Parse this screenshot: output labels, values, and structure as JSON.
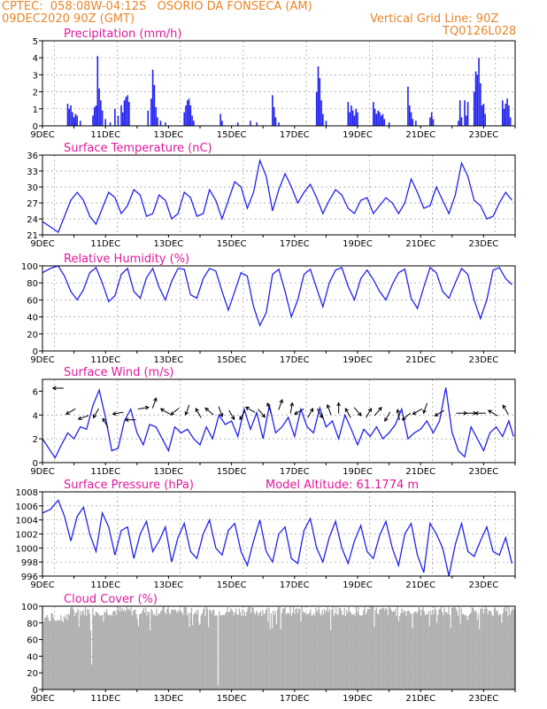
{
  "header": {
    "line1_left": "CPTEC:  058:08W-04:12S   OSORIO DA FONSECA (AM)",
    "line2_left": "09DEC2020 90Z (GMT)",
    "line2_right": "Vertical Grid Line: 90Z",
    "line3_right": "TQ0126L028"
  },
  "colors": {
    "header": "#e8862a",
    "title": "#e0189a",
    "series": "#2222ee",
    "cloud": "#b0b0b0",
    "arrow": "#000000"
  },
  "date_labels": [
    "9DEC",
    "11DEC",
    "13DEC",
    "15DEC",
    "17DEC",
    "19DEC",
    "21DEC",
    "23DEC"
  ],
  "chart_data": [
    {
      "type": "bar",
      "title": "Precipitation (mm/h)",
      "ylim": [
        0,
        5
      ],
      "yticks": [
        "0",
        "1",
        "2",
        "3",
        "4",
        "5"
      ],
      "x_range_days": [
        9,
        24
      ],
      "values": [
        [
          9.8,
          1.3
        ],
        [
          9.85,
          1.0
        ],
        [
          9.9,
          1.2
        ],
        [
          9.95,
          0.8
        ],
        [
          10.0,
          0.5
        ],
        [
          10.05,
          0.7
        ],
        [
          10.1,
          0.6
        ],
        [
          10.2,
          0.3
        ],
        [
          10.6,
          0.6
        ],
        [
          10.65,
          1.1
        ],
        [
          10.7,
          1.2
        ],
        [
          10.75,
          4.1
        ],
        [
          10.8,
          2.2
        ],
        [
          10.85,
          1.5
        ],
        [
          10.9,
          0.9
        ],
        [
          11.0,
          0.4
        ],
        [
          11.15,
          0.2
        ],
        [
          11.3,
          1.0
        ],
        [
          11.4,
          0.6
        ],
        [
          11.5,
          1.2
        ],
        [
          11.55,
          0.8
        ],
        [
          11.6,
          1.5
        ],
        [
          11.65,
          1.7
        ],
        [
          11.7,
          1.8
        ],
        [
          11.75,
          1.4
        ],
        [
          12.35,
          0.9
        ],
        [
          12.45,
          1.6
        ],
        [
          12.5,
          3.3
        ],
        [
          12.55,
          2.4
        ],
        [
          12.6,
          1.1
        ],
        [
          12.65,
          0.5
        ],
        [
          12.75,
          0.3
        ],
        [
          12.9,
          0.2
        ],
        [
          13.5,
          0.8
        ],
        [
          13.55,
          1.2
        ],
        [
          13.6,
          1.5
        ],
        [
          13.65,
          1.6
        ],
        [
          13.7,
          1.2
        ],
        [
          13.75,
          0.6
        ],
        [
          13.8,
          0.3
        ],
        [
          14.65,
          0.7
        ],
        [
          14.7,
          0.3
        ],
        [
          15.2,
          0.2
        ],
        [
          15.6,
          0.3
        ],
        [
          15.8,
          0.2
        ],
        [
          16.3,
          1.8
        ],
        [
          16.35,
          1.1
        ],
        [
          16.4,
          0.5
        ],
        [
          16.5,
          0.2
        ],
        [
          17.7,
          2.0
        ],
        [
          17.75,
          3.5
        ],
        [
          17.8,
          2.8
        ],
        [
          17.85,
          1.5
        ],
        [
          17.9,
          0.7
        ],
        [
          18.0,
          0.3
        ],
        [
          18.7,
          1.4
        ],
        [
          18.75,
          0.8
        ],
        [
          18.8,
          1.2
        ],
        [
          18.85,
          0.9
        ],
        [
          18.9,
          0.6
        ],
        [
          18.95,
          1.0
        ],
        [
          19.0,
          0.8
        ],
        [
          19.5,
          1.4
        ],
        [
          19.55,
          1.0
        ],
        [
          19.6,
          0.7
        ],
        [
          19.65,
          0.9
        ],
        [
          19.7,
          0.8
        ],
        [
          19.75,
          0.6
        ],
        [
          19.8,
          0.7
        ],
        [
          19.85,
          0.4
        ],
        [
          20.0,
          0.2
        ],
        [
          20.6,
          2.3
        ],
        [
          20.65,
          1.2
        ],
        [
          20.7,
          0.8
        ],
        [
          20.75,
          0.4
        ],
        [
          20.85,
          0.3
        ],
        [
          21.3,
          0.5
        ],
        [
          21.35,
          0.8
        ],
        [
          21.4,
          0.4
        ],
        [
          22.2,
          0.3
        ],
        [
          22.25,
          1.5
        ],
        [
          22.3,
          0.5
        ],
        [
          22.4,
          1.5
        ],
        [
          22.45,
          0.6
        ],
        [
          22.5,
          1.4
        ],
        [
          22.7,
          2.0
        ],
        [
          22.75,
          3.2
        ],
        [
          22.8,
          3.0
        ],
        [
          22.85,
          4.0
        ],
        [
          22.9,
          2.5
        ],
        [
          22.95,
          1.2
        ],
        [
          23.0,
          1.3
        ],
        [
          23.05,
          0.7
        ],
        [
          23.6,
          1.5
        ],
        [
          23.65,
          1.0
        ],
        [
          23.7,
          1.3
        ],
        [
          23.75,
          1.6
        ],
        [
          23.8,
          1.2
        ],
        [
          23.85,
          0.5
        ]
      ]
    },
    {
      "type": "line",
      "title": "Surface Temperature (nC)",
      "ylim": [
        21,
        36
      ],
      "yticks": [
        "21",
        "24",
        "27",
        "30",
        "33",
        "36"
      ],
      "x": [
        9.0,
        9.25,
        9.5,
        9.7,
        9.9,
        10.1,
        10.3,
        10.5,
        10.7,
        10.9,
        11.1,
        11.3,
        11.5,
        11.7,
        11.9,
        12.1,
        12.3,
        12.5,
        12.7,
        12.9,
        13.1,
        13.3,
        13.5,
        13.7,
        13.9,
        14.1,
        14.3,
        14.5,
        14.7,
        14.9,
        15.1,
        15.3,
        15.5,
        15.7,
        15.9,
        16.1,
        16.3,
        16.5,
        16.7,
        16.9,
        17.1,
        17.3,
        17.5,
        17.7,
        17.9,
        18.1,
        18.3,
        18.5,
        18.7,
        18.9,
        19.1,
        19.3,
        19.5,
        19.7,
        19.9,
        20.1,
        20.3,
        20.5,
        20.7,
        20.9,
        21.1,
        21.3,
        21.5,
        21.7,
        21.9,
        22.1,
        22.3,
        22.5,
        22.7,
        22.9,
        23.1,
        23.3,
        23.5,
        23.7,
        23.9
      ],
      "values": [
        23.5,
        22.5,
        21.5,
        24.5,
        27.5,
        29.0,
        27.5,
        24.5,
        23.0,
        26.0,
        29.0,
        28.0,
        25.0,
        26.5,
        29.5,
        28.5,
        24.5,
        25.0,
        28.5,
        27.5,
        24.0,
        25.0,
        29.0,
        28.0,
        24.5,
        25.0,
        29.5,
        27.5,
        24.0,
        27.5,
        31.0,
        30.0,
        26.0,
        29.0,
        35.0,
        32.0,
        25.5,
        29.5,
        32.5,
        30.0,
        27.0,
        29.0,
        30.5,
        28.0,
        25.0,
        27.5,
        29.5,
        28.5,
        26.0,
        25.0,
        27.5,
        28.0,
        25.0,
        26.5,
        28.0,
        27.0,
        25.0,
        27.0,
        31.5,
        29.0,
        26.0,
        26.5,
        30.0,
        27.5,
        25.0,
        28.5,
        34.5,
        32.0,
        27.5,
        26.5,
        24.0,
        24.5,
        27.0,
        29.0,
        27.5
      ]
    },
    {
      "type": "line",
      "title": "Relative Humidity (%)",
      "ylim": [
        0,
        100
      ],
      "yticks": [
        "0",
        "20",
        "40",
        "60",
        "80",
        "100"
      ],
      "x": [
        9.0,
        9.25,
        9.5,
        9.7,
        9.9,
        10.1,
        10.3,
        10.5,
        10.7,
        10.9,
        11.1,
        11.3,
        11.5,
        11.7,
        11.9,
        12.1,
        12.3,
        12.5,
        12.7,
        12.9,
        13.1,
        13.3,
        13.5,
        13.7,
        13.9,
        14.1,
        14.3,
        14.5,
        14.7,
        14.9,
        15.1,
        15.3,
        15.5,
        15.7,
        15.9,
        16.1,
        16.3,
        16.5,
        16.7,
        16.9,
        17.1,
        17.3,
        17.5,
        17.7,
        17.9,
        18.1,
        18.3,
        18.5,
        18.7,
        18.9,
        19.1,
        19.3,
        19.5,
        19.7,
        19.9,
        20.1,
        20.3,
        20.5,
        20.7,
        20.9,
        21.1,
        21.3,
        21.5,
        21.7,
        21.9,
        22.1,
        22.3,
        22.5,
        22.7,
        22.9,
        23.1,
        23.3,
        23.5,
        23.7,
        23.9
      ],
      "values": [
        92,
        97,
        100,
        88,
        70,
        60,
        72,
        92,
        98,
        80,
        58,
        65,
        90,
        97,
        70,
        62,
        86,
        97,
        75,
        60,
        82,
        97,
        96,
        66,
        62,
        85,
        97,
        94,
        70,
        48,
        70,
        92,
        88,
        52,
        30,
        45,
        90,
        96,
        70,
        40,
        60,
        90,
        96,
        74,
        52,
        80,
        95,
        98,
        76,
        60,
        85,
        95,
        84,
        70,
        60,
        78,
        92,
        96,
        62,
        50,
        75,
        98,
        92,
        70,
        62,
        80,
        97,
        90,
        60,
        38,
        60,
        95,
        98,
        85,
        78
      ]
    },
    {
      "type": "line",
      "title": "Surface Wind (m/s)",
      "ylim": [
        0,
        7
      ],
      "yticks": [
        "0",
        "2",
        "4",
        "6"
      ],
      "x": [
        9.0,
        9.2,
        9.4,
        9.6,
        9.8,
        10.0,
        10.2,
        10.4,
        10.6,
        10.8,
        11.0,
        11.2,
        11.4,
        11.6,
        11.8,
        12.0,
        12.2,
        12.4,
        12.6,
        12.8,
        13.0,
        13.2,
        13.4,
        13.6,
        13.8,
        14.0,
        14.2,
        14.4,
        14.6,
        14.8,
        15.0,
        15.2,
        15.4,
        15.6,
        15.8,
        16.0,
        16.2,
        16.4,
        16.6,
        16.8,
        17.0,
        17.2,
        17.4,
        17.6,
        17.8,
        18.0,
        18.2,
        18.4,
        18.6,
        18.8,
        19.0,
        19.2,
        19.4,
        19.6,
        19.8,
        20.0,
        20.2,
        20.4,
        20.6,
        20.8,
        21.0,
        21.2,
        21.4,
        21.6,
        21.8,
        22.0,
        22.2,
        22.4,
        22.6,
        22.8,
        23.0,
        23.2,
        23.4,
        23.6,
        23.8,
        23.95
      ],
      "values": [
        2.0,
        1.2,
        0.4,
        1.5,
        2.5,
        2.0,
        3.0,
        2.8,
        4.8,
        6.1,
        3.8,
        1.0,
        1.2,
        3.5,
        4.5,
        2.5,
        1.5,
        3.2,
        3.0,
        2.0,
        1.0,
        3.0,
        2.5,
        2.8,
        2.0,
        1.5,
        3.0,
        2.0,
        4.0,
        3.2,
        3.5,
        2.2,
        4.5,
        2.8,
        4.2,
        2.0,
        4.8,
        2.5,
        3.0,
        3.8,
        2.2,
        4.5,
        3.0,
        2.5,
        4.6,
        3.0,
        3.5,
        2.0,
        4.0,
        2.8,
        1.5,
        2.8,
        2.2,
        3.0,
        2.0,
        2.5,
        3.2,
        4.5,
        2.0,
        2.5,
        2.8,
        3.5,
        2.5,
        3.5,
        6.3,
        2.5,
        1.0,
        0.5,
        3.0,
        2.0,
        1.0,
        2.5,
        3.0,
        2.2,
        3.5,
        2.2
      ]
    },
    {
      "type": "line",
      "title": "Surface Pressure (hPa)",
      "annotation": "Model Altitude: 61.1774 m",
      "ylim": [
        996,
        1008
      ],
      "yticks": [
        "996",
        "998",
        "1000",
        "1002",
        "1004",
        "1006",
        "1008"
      ],
      "x": [
        9.0,
        9.25,
        9.5,
        9.7,
        9.9,
        10.1,
        10.3,
        10.5,
        10.7,
        10.9,
        11.1,
        11.3,
        11.5,
        11.7,
        11.9,
        12.1,
        12.3,
        12.5,
        12.7,
        12.9,
        13.1,
        13.3,
        13.5,
        13.7,
        13.9,
        14.1,
        14.3,
        14.5,
        14.7,
        14.9,
        15.1,
        15.3,
        15.5,
        15.7,
        15.9,
        16.1,
        16.3,
        16.5,
        16.7,
        16.9,
        17.1,
        17.3,
        17.5,
        17.7,
        17.9,
        18.1,
        18.3,
        18.5,
        18.7,
        18.9,
        19.1,
        19.3,
        19.5,
        19.7,
        19.9,
        20.1,
        20.3,
        20.5,
        20.7,
        20.9,
        21.1,
        21.3,
        21.5,
        21.7,
        21.9,
        22.1,
        22.3,
        22.5,
        22.7,
        22.9,
        23.1,
        23.3,
        23.5,
        23.7,
        23.9
      ],
      "values": [
        1005.0,
        1005.5,
        1006.8,
        1004.5,
        1001.0,
        1004.5,
        1005.8,
        1002.0,
        999.5,
        1005.0,
        1003.0,
        999.0,
        1002.5,
        1003.0,
        998.5,
        1002.0,
        1003.8,
        999.5,
        1001.0,
        1003.0,
        998.0,
        1001.5,
        1003.5,
        999.5,
        998.5,
        1002.0,
        1004.0,
        1000.0,
        999.0,
        1002.5,
        1003.5,
        999.5,
        997.5,
        1001.0,
        1004.0,
        999.5,
        998.0,
        1002.0,
        1003.0,
        998.5,
        997.8,
        1002.5,
        1004.2,
        1000.0,
        998.0,
        1001.5,
        1003.8,
        1000.0,
        997.8,
        1001.0,
        1003.2,
        999.5,
        998.5,
        1001.8,
        1003.8,
        1000.0,
        997.5,
        1002.0,
        1003.5,
        999.0,
        996.5,
        1003.5,
        1002.0,
        1000.0,
        996.0,
        1000.5,
        1003.5,
        999.5,
        998.8,
        1001.0,
        1003.0,
        999.5,
        999.0,
        1001.5,
        997.8
      ]
    },
    {
      "type": "area",
      "title": "Cloud Cover (%)",
      "ylim": [
        0,
        100
      ],
      "yticks": [
        "0",
        "20",
        "40",
        "60",
        "80",
        "100"
      ]
    }
  ]
}
